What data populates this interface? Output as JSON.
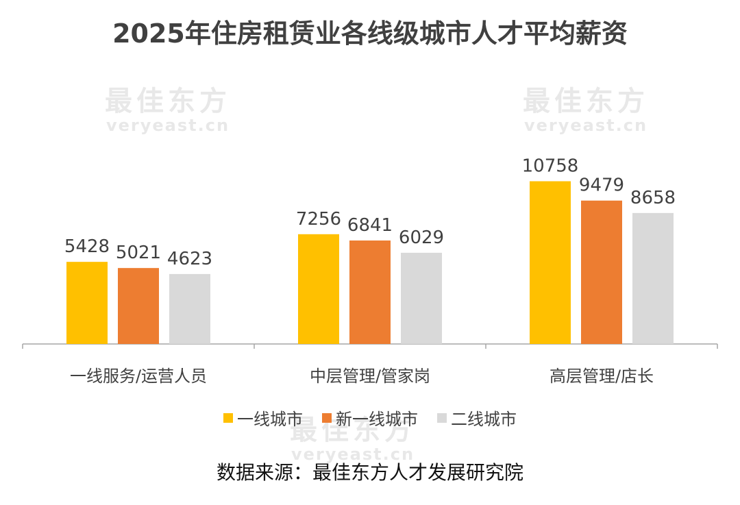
{
  "chart_data": {
    "type": "bar",
    "title": "2025年住房租赁业各线级城市人才平均薪资",
    "categories": [
      "一线服务/运营人员",
      "中层管理/管家岗",
      "高层管理/店长"
    ],
    "series": [
      {
        "name": "一线城市",
        "color": "#FFC000",
        "values": [
          5428,
          7256,
          10758
        ]
      },
      {
        "name": "新一线城市",
        "color": "#ED7D31",
        "values": [
          5021,
          6841,
          9479
        ]
      },
      {
        "name": "二线城市",
        "color": "#D9D9D9",
        "values": [
          4623,
          6029,
          8658
        ]
      }
    ],
    "xlabel": "",
    "ylabel": "",
    "ylim": [
      0,
      13000
    ],
    "grid": false,
    "legend": "bottom",
    "source": "数据来源：最佳东方人才发展研究院"
  },
  "watermark": {
    "cn": "最佳东方",
    "en": "veryeast.cn"
  }
}
